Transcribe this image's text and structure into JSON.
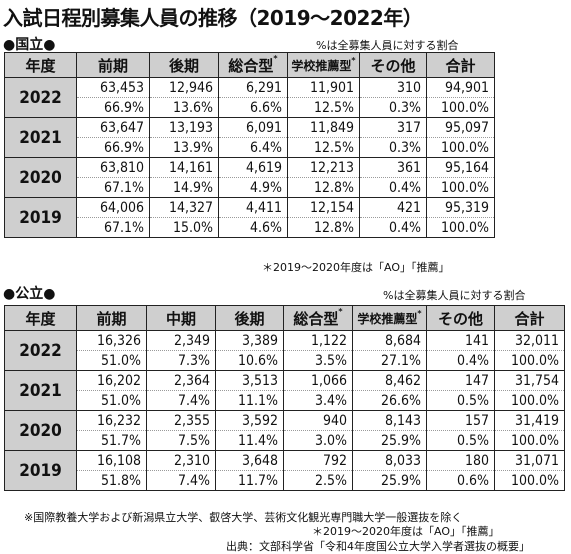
{
  "title": "入試日程別募集人員の推移（2019〜2022年）",
  "national": {
    "label": "●国立●",
    "note": "%は全募集人員に対する割合",
    "headers": [
      "年度",
      "前期",
      "後期",
      "総合型",
      "学校推薦型",
      "その他",
      "合計"
    ],
    "header_marks": [
      "",
      "",
      "",
      "*",
      "*",
      "",
      ""
    ],
    "rows": [
      {
        "year": "2022",
        "values": [
          "63,453",
          "12,946",
          "6,291",
          "11,901",
          "310",
          "94,901"
        ],
        "pcts": [
          "66.9%",
          "13.6%",
          "6.6%",
          "12.5%",
          "0.3%",
          "100.0%"
        ]
      },
      {
        "year": "2021",
        "values": [
          "63,647",
          "13,193",
          "6,091",
          "11,849",
          "317",
          "95,097"
        ],
        "pcts": [
          "66.9%",
          "13.9%",
          "6.4%",
          "12.5%",
          "0.3%",
          "100.0%"
        ]
      },
      {
        "year": "2020",
        "values": [
          "63,810",
          "14,161",
          "4,619",
          "12,213",
          "361",
          "95,164"
        ],
        "pcts": [
          "67.1%",
          "14.9%",
          "4.9%",
          "12.8%",
          "0.4%",
          "100.0%"
        ]
      },
      {
        "year": "2019",
        "values": [
          "64,006",
          "14,327",
          "4,411",
          "12,154",
          "421",
          "95,319"
        ],
        "pcts": [
          "67.1%",
          "15.0%",
          "4.6%",
          "12.8%",
          "0.4%",
          "100.0%"
        ]
      }
    ],
    "footnote": "＊2019〜2020年度は「AO」「推薦」"
  },
  "public": {
    "label": "●公立●",
    "note": "%は全募集人員に対する割合",
    "headers": [
      "年度",
      "前期",
      "中期",
      "後期",
      "総合型",
      "学校推薦型",
      "その他",
      "合計"
    ],
    "header_marks": [
      "",
      "",
      "",
      "",
      "*",
      "*",
      "",
      ""
    ],
    "rows": [
      {
        "year": "2022",
        "values": [
          "16,326",
          "2,349",
          "3,389",
          "1,122",
          "8,684",
          "141",
          "32,011"
        ],
        "pcts": [
          "51.0%",
          "7.3%",
          "10.6%",
          "3.5%",
          "27.1%",
          "0.4%",
          "100.0%"
        ]
      },
      {
        "year": "2021",
        "values": [
          "16,202",
          "2,364",
          "3,513",
          "1,066",
          "8,462",
          "147",
          "31,754"
        ],
        "pcts": [
          "51.0%",
          "7.4%",
          "11.1%",
          "3.4%",
          "26.6%",
          "0.5%",
          "100.0%"
        ]
      },
      {
        "year": "2020",
        "values": [
          "16,232",
          "2,355",
          "3,592",
          "940",
          "8,143",
          "157",
          "31,419"
        ],
        "pcts": [
          "51.7%",
          "7.5%",
          "11.4%",
          "3.0%",
          "25.9%",
          "0.5%",
          "100.0%"
        ]
      },
      {
        "year": "2019",
        "values": [
          "16,108",
          "2,310",
          "3,648",
          "792",
          "8,033",
          "180",
          "31,071"
        ],
        "pcts": [
          "51.8%",
          "7.4%",
          "11.7%",
          "2.5%",
          "25.9%",
          "0.6%",
          "100.0%"
        ]
      }
    ],
    "footnotes": [
      "※国際教養大学および新潟県立大学、叡啓大学、芸術文化観光専門職大学一般選抜を除く",
      "＊2019〜2020年度は「AO」「推薦」",
      "出典：文部科学省「令和4年度国公立大学入学者選抜の概要」"
    ]
  }
}
